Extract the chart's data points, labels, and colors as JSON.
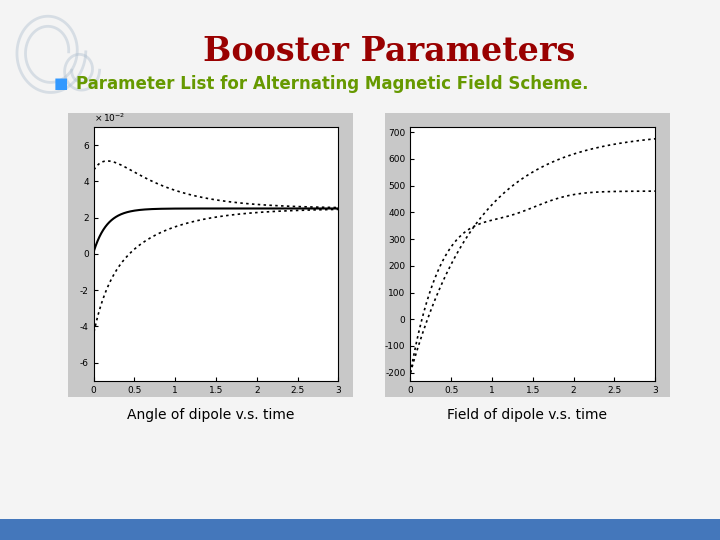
{
  "title": "Booster Parameters",
  "title_color": "#990000",
  "subtitle": "Parameter List for Alternating Magnetic Field Scheme.",
  "subtitle_color": "#669900",
  "bullet_color": "#3399FF",
  "caption_left": "Angle of dipole v.s. time",
  "caption_right": "Field of dipole v.s. time",
  "caption_color": "#000000",
  "slide_bg": "#f4f4f4",
  "plot_bg": "#ffffff",
  "panel_bg": "#c8c8c8",
  "bottom_bar_color": "#4477bb",
  "left_plot": {
    "xlabel_ticks": [
      0,
      0.5,
      1,
      1.5,
      2,
      2.5,
      3
    ],
    "yticks": [
      -6,
      -4,
      -2,
      0,
      2,
      4,
      6
    ],
    "xlim": [
      0,
      3
    ],
    "ylim": [
      -7,
      7
    ]
  },
  "right_plot": {
    "xlabel_ticks": [
      0,
      0.5,
      1,
      1.5,
      2,
      2.5,
      3
    ],
    "yticks": [
      -200,
      -100,
      0,
      100,
      200,
      300,
      400,
      500,
      600,
      700
    ],
    "xlim": [
      0,
      3
    ],
    "ylim": [
      -230,
      720
    ]
  }
}
